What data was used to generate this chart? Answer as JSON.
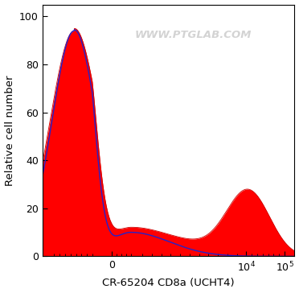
{
  "xlabel": "CR-65204 CD8a (UCHT4)",
  "ylabel": "Relative cell number",
  "watermark": "WWW.PTGLAB.COM",
  "ylim": [
    0,
    105
  ],
  "yticks": [
    0,
    20,
    40,
    60,
    80,
    100
  ],
  "background_color": "#ffffff",
  "red_fill_color": "#ff0000",
  "blue_line_color": "#2222cc",
  "linthresh": 10,
  "linscale": 0.45,
  "figsize": [
    3.72,
    3.64
  ],
  "dpi": 100
}
